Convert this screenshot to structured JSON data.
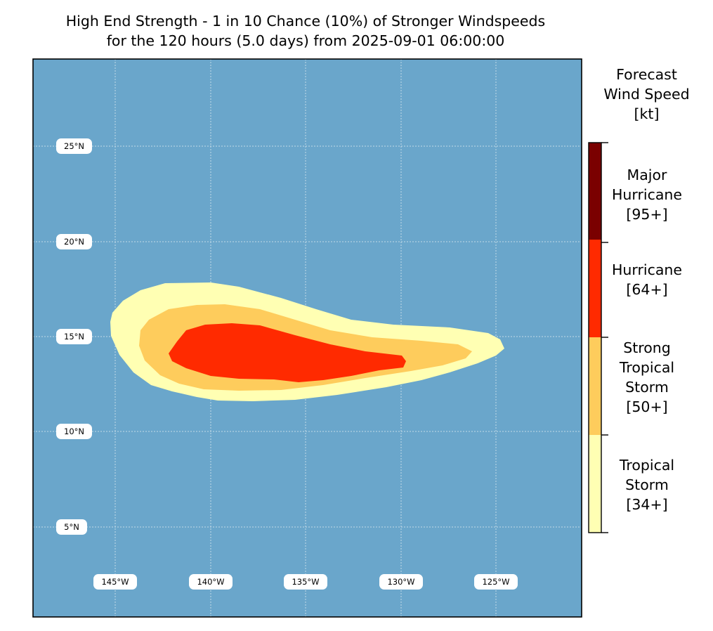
{
  "title": {
    "line1": "High End Strength - 1 in 10 Chance (10%) of Stronger Windspeeds",
    "line2": "for the 120 hours (5.0 days) from 2025-09-01 06:00:00"
  },
  "map": {
    "ocean_color": "#6aa6cb",
    "latitude_labels": [
      "25°N",
      "20°N",
      "15°N",
      "10°N",
      "5°N"
    ],
    "longitude_labels": [
      "145°W",
      "140°W",
      "135°W",
      "130°W",
      "125°W"
    ]
  },
  "colorbar": {
    "title_line1": "Forecast",
    "title_line2": "Wind Speed",
    "title_line3": "[kt]",
    "categories": [
      {
        "name": "tropical-storm",
        "line1": "Tropical",
        "line2": "Storm",
        "line3": "[34+]",
        "color": "#ffffb3"
      },
      {
        "name": "strong-tropical-storm",
        "line1": "Strong",
        "line2": "Tropical",
        "line3": "Storm",
        "line4": "[50+]",
        "color": "#fecc5c"
      },
      {
        "name": "hurricane",
        "line1": "Hurricane",
        "line2": "[64+]",
        "color": "#ff2a00"
      },
      {
        "name": "major-hurricane",
        "line1": "Major",
        "line2": "Hurricane",
        "line3": "[95+]",
        "color": "#7a0000"
      }
    ]
  },
  "wind_field": {
    "thresholds_kt": [
      34,
      50,
      64,
      95
    ],
    "tropical_storm_color": "#ffffb3",
    "strong_tropical_storm_color": "#fecc5c",
    "hurricane_color": "#ff2a00"
  }
}
